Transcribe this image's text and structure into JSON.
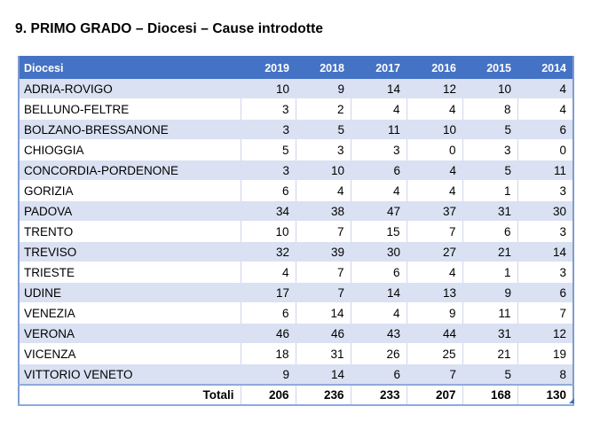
{
  "page": {
    "title": "9. PRIMO GRADO – Diocesi – Cause introdotte"
  },
  "colors": {
    "header_bg": "#4472C4",
    "header_text": "#FFFFFF",
    "band_bg": "#D9E1F2",
    "outer_border": "#8EAADB",
    "grid_line": "#CCD6EA"
  },
  "table": {
    "columns": [
      "Diocesi",
      "2019",
      "2018",
      "2017",
      "2016",
      "2015",
      "2014"
    ],
    "rows": [
      {
        "name": "ADRIA-ROVIGO",
        "values": [
          10,
          9,
          14,
          12,
          10,
          4
        ]
      },
      {
        "name": "BELLUNO-FELTRE",
        "values": [
          3,
          2,
          4,
          4,
          8,
          4
        ]
      },
      {
        "name": "BOLZANO-BRESSANONE",
        "values": [
          3,
          5,
          11,
          10,
          5,
          6
        ]
      },
      {
        "name": "CHIOGGIA",
        "values": [
          5,
          3,
          3,
          0,
          3,
          0
        ]
      },
      {
        "name": "CONCORDIA-PORDENONE",
        "values": [
          3,
          10,
          6,
          4,
          5,
          11
        ]
      },
      {
        "name": "GORIZIA",
        "values": [
          6,
          4,
          4,
          4,
          1,
          3
        ]
      },
      {
        "name": "PADOVA",
        "values": [
          34,
          38,
          47,
          37,
          31,
          30
        ]
      },
      {
        "name": "TRENTO",
        "values": [
          10,
          7,
          15,
          7,
          6,
          3
        ]
      },
      {
        "name": "TREVISO",
        "values": [
          32,
          39,
          30,
          27,
          21,
          14
        ]
      },
      {
        "name": "TRIESTE",
        "values": [
          4,
          7,
          6,
          4,
          1,
          3
        ]
      },
      {
        "name": "UDINE",
        "values": [
          17,
          7,
          14,
          13,
          9,
          6
        ]
      },
      {
        "name": "VENEZIA",
        "values": [
          6,
          14,
          4,
          9,
          11,
          7
        ]
      },
      {
        "name": "VERONA",
        "values": [
          46,
          46,
          43,
          44,
          31,
          12
        ]
      },
      {
        "name": "VICENZA",
        "values": [
          18,
          31,
          26,
          25,
          21,
          19
        ]
      },
      {
        "name": "VITTORIO VENETO",
        "values": [
          9,
          14,
          6,
          7,
          5,
          8
        ]
      }
    ],
    "totals_label": "Totali",
    "totals": [
      206,
      236,
      233,
      207,
      168,
      130
    ]
  }
}
